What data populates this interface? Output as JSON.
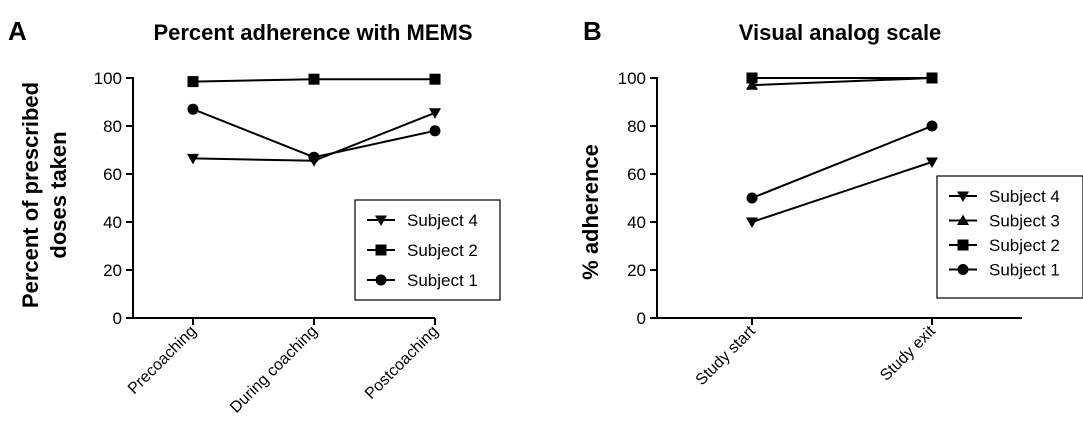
{
  "chart_data": [
    {
      "panel": "A",
      "type": "line",
      "title": "Percent adherence with MEMS",
      "ylabel": "Percent of prescribed doses taken",
      "xlabel": "",
      "ylim": [
        0,
        100
      ],
      "yticks": [
        "0",
        "20",
        "40",
        "60",
        "80",
        "100"
      ],
      "categories": [
        "Precoaching",
        "During coaching",
        "Postcoaching"
      ],
      "legend_position": "bottom-right",
      "series": [
        {
          "name": "Subject 4",
          "marker": "triangle-down",
          "values": [
            66.5,
            65.5,
            85.5
          ]
        },
        {
          "name": "Subject 2",
          "marker": "square",
          "values": [
            98.5,
            99.5,
            99.5
          ]
        },
        {
          "name": "Subject 1",
          "marker": "circle",
          "values": [
            87,
            67,
            78
          ]
        }
      ]
    },
    {
      "panel": "B",
      "type": "line",
      "title": "Visual analog scale",
      "ylabel": "% adherence",
      "xlabel": "",
      "ylim": [
        0,
        100
      ],
      "yticks": [
        "0",
        "20",
        "40",
        "60",
        "80",
        "100"
      ],
      "categories": [
        "Study start",
        "Study exit"
      ],
      "legend_position": "right",
      "series": [
        {
          "name": "Subject 4",
          "marker": "triangle-down",
          "values": [
            40,
            65
          ]
        },
        {
          "name": "Subject 3",
          "marker": "triangle-up",
          "values": [
            97,
            100
          ]
        },
        {
          "name": "Subject 2",
          "marker": "square",
          "values": [
            100,
            100
          ]
        },
        {
          "name": "Subject 1",
          "marker": "circle",
          "values": [
            50,
            80
          ]
        }
      ]
    }
  ]
}
